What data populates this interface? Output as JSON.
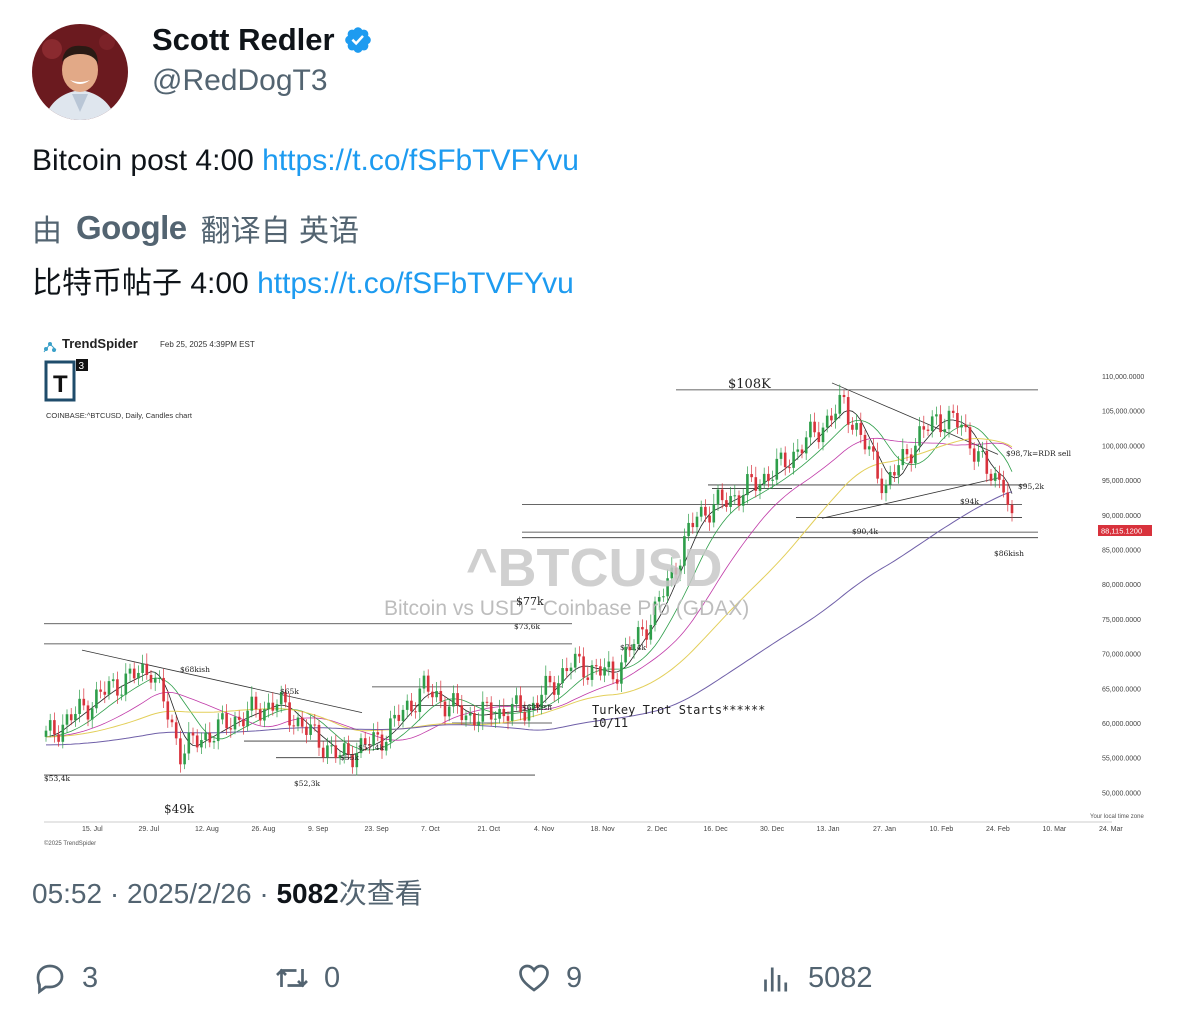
{
  "author": {
    "name": "Scott Redler",
    "handle": "@RedDogT3"
  },
  "tweet": {
    "text": "Bitcoin post 4:00 ",
    "link": "https://t.co/fSFbTVFYvu"
  },
  "translation": {
    "by": "由",
    "google": "Google",
    "from": "翻译自 英语",
    "text": "比特币帖子 4:00 ",
    "link": "https://t.co/fSFbTVFYvu"
  },
  "meta": {
    "time": "05:52",
    "date": "2025/2/26",
    "sep": " · ",
    "views": "5082",
    "views_suffix": "次查看"
  },
  "actions": {
    "replies": "3",
    "retweets": "0",
    "likes": "9",
    "views": "5082"
  },
  "chart_image": {
    "brand": "TrendSpider",
    "timestamp": "Feb 25, 2025 4:39PM EST",
    "badge": "T",
    "badge_sup": "3",
    "ticker_line": "COINBASE:^BTCUSD, Daily, Candles chart",
    "watermark": "^BTCUSD",
    "watermark_sub": "Bitcoin vs USD - Coinbase Pro (GDAX)",
    "copyright": "©2025 TrendSpider",
    "timezone": "Your local time zone",
    "current_price": "88,115.1200",
    "annotation_turkey": "Turkey Trot Starts******",
    "annotation_turkey_date": "10/11",
    "price_labels": [
      "$108K",
      "$98,7k=RDR sell",
      "$95,2k",
      "$94k",
      "$90,4k",
      "$86kish",
      "$77k",
      "$73,6k",
      "$71,4k",
      "$68kish",
      "$65k",
      "$62kish",
      "$57,4k",
      "$55k",
      "$52,3k",
      "$53,4k",
      "$49k"
    ],
    "y_axis": [
      "110,000.0000",
      "105,000.0000",
      "100,000.0000",
      "95,000.0000",
      "90,000.0000",
      "85,000.0000",
      "80,000.0000",
      "75,000.0000",
      "70,000.0000",
      "65,000.0000",
      "60,000.0000",
      "55,000.0000",
      "50,000.0000"
    ],
    "x_axis": [
      "15. Jul",
      "29. Jul",
      "12. Aug",
      "26. Aug",
      "9. Sep",
      "23. Sep",
      "7. Oct",
      "21. Oct",
      "4. Nov",
      "18. Nov",
      "2. Dec",
      "16. Dec",
      "30. Dec",
      "13. Jan",
      "27. Jan",
      "10. Feb",
      "24. Feb",
      "10. Mar",
      "24. Mar"
    ]
  },
  "colors": {
    "link": "#1d9bf0",
    "verified": "#1d9bf0",
    "up": "#2e9e4a",
    "down": "#d8323c"
  }
}
